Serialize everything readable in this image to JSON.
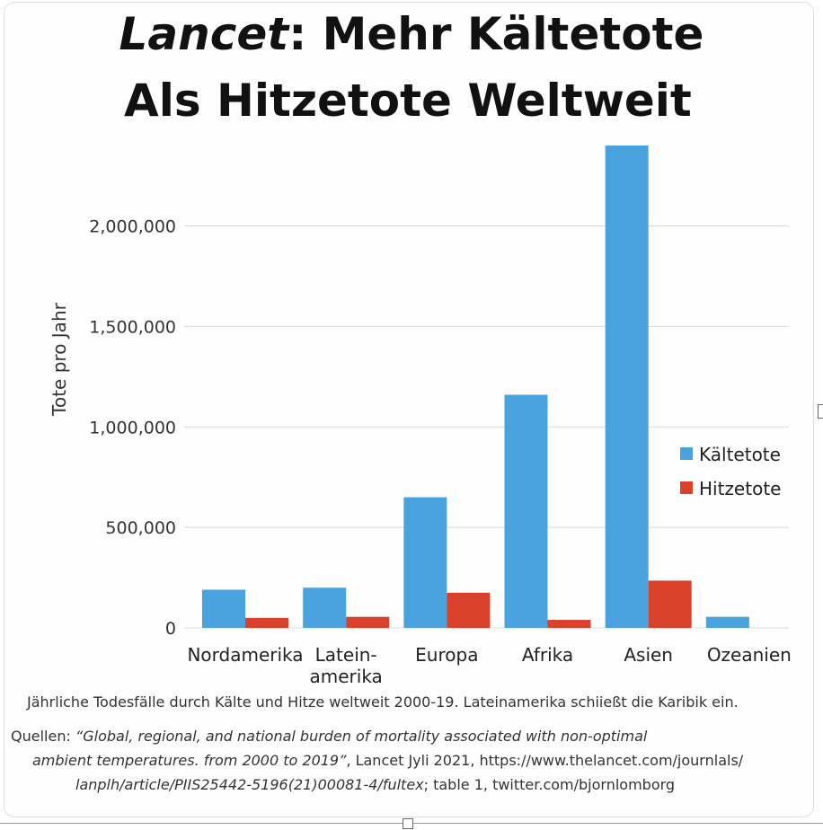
{
  "title": {
    "emphasis": "Lancet",
    "line1_rest": ": Mehr Kältetote",
    "line2": "Als Hitzetote Weltweit"
  },
  "caption": "Jährliche Todesfälle durch Kälte und Hitze weltweit 2000-19. Lateinamerika schiießt die Karibik ein.",
  "sources": {
    "prefix": "Quellen: ",
    "title_part1": "“Global, regional, and national burden of mortality associated with non-optimal",
    "title_part2": "ambient temperatures. from 2000 to 2019”",
    "middle": ", Lancet Jyli 2021, https://www.thelancet.com/journlals/",
    "url_end": "lanplh/article/PIIS25442-5196(21)00081-4/fultex",
    "suffix": "; table 1, twitter.com/bjornlomborg"
  },
  "chart_data": {
    "type": "bar",
    "title": "Lancet: Mehr Kältetote Als Hitzetote Weltweit",
    "xlabel": "",
    "ylabel": "Tote pro Jahr",
    "ylim": [
      0,
      2400000
    ],
    "yticks": [
      0,
      500000,
      1000000,
      1500000,
      2000000
    ],
    "ytick_labels": [
      "0",
      "500,000",
      "1,000,000",
      "1,500,000",
      "2,000,000"
    ],
    "categories": [
      [
        "Nordamerika"
      ],
      [
        "Latein-",
        "amerika"
      ],
      [
        "Europa"
      ],
      [
        "Afrika"
      ],
      [
        "Asien"
      ],
      [
        "Ozeanien"
      ]
    ],
    "series": [
      {
        "name": "Kältetote",
        "color": "#4aa3df",
        "values": [
          190000,
          200000,
          650000,
          1160000,
          2400000,
          55000
        ]
      },
      {
        "name": "Hitzetote",
        "color": "#d9412b",
        "values": [
          50000,
          55000,
          175000,
          40000,
          235000,
          0
        ]
      }
    ],
    "legend_position": "right",
    "grid": true
  }
}
